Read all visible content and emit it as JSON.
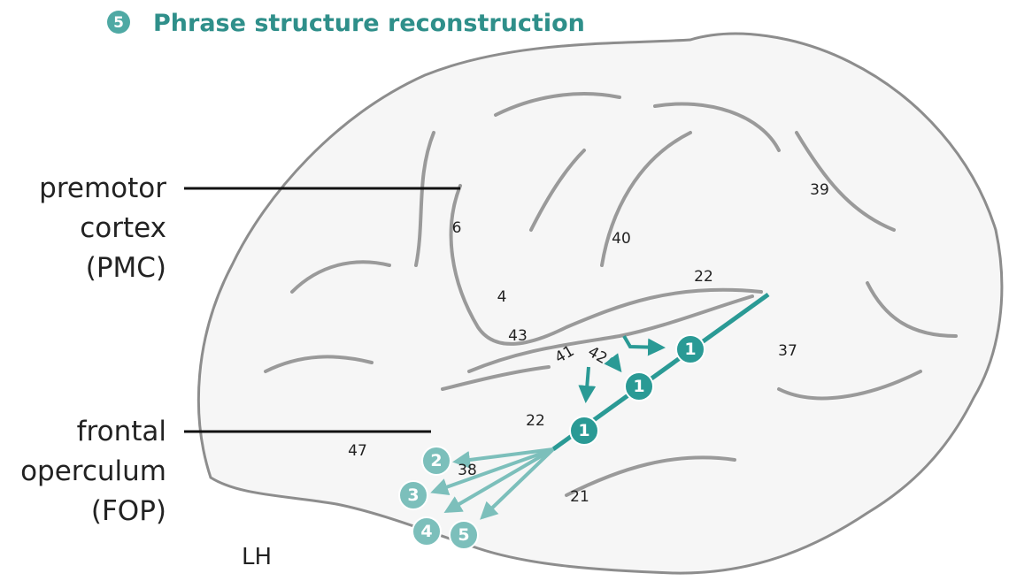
{
  "header": {
    "badge": "5",
    "title": "Phrase structure reconstruction"
  },
  "labels": [
    {
      "lines": [
        "premotor",
        "cortex",
        "(PMC)"
      ]
    },
    {
      "lines": [
        "frontal",
        "operculum",
        "(FOP)"
      ]
    }
  ],
  "hemisphere": "LH",
  "areas": [
    "6",
    "40",
    "39",
    "22",
    "4",
    "43",
    "41",
    "42",
    "37",
    "22",
    "47",
    "38",
    "21"
  ],
  "nodes": [
    "1",
    "1",
    "1",
    "2",
    "3",
    "4",
    "5"
  ]
}
